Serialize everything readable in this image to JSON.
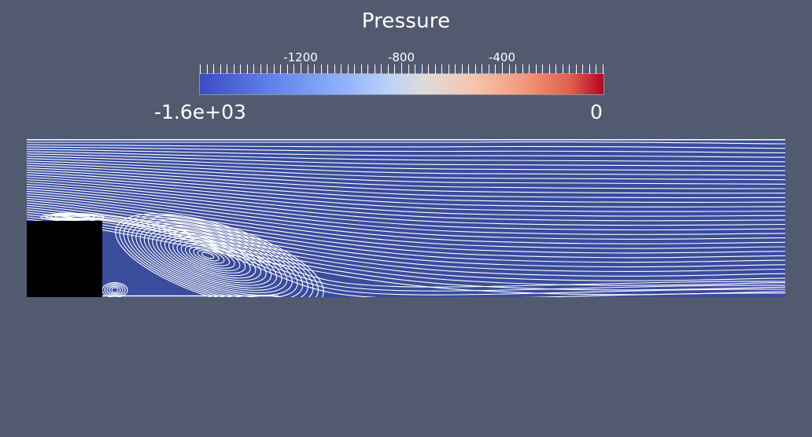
{
  "legend": {
    "title": "Pressure",
    "range_min_label": "-1.6e+03",
    "range_max_label": "0",
    "tick_labels": [
      {
        "text": "-1200",
        "value": -1200
      },
      {
        "text": "-800",
        "value": -800
      },
      {
        "text": "-400",
        "value": -400
      }
    ],
    "range": [
      -1600,
      0
    ],
    "colors": {
      "low": "#3b4cc0",
      "mid": "#dddcdc",
      "high": "#b40426"
    }
  },
  "viewport": {
    "field_color": "#3a4c9c",
    "streamline_color": "#ffffff",
    "obstacle_color": "#000000",
    "background_color": "#525a70"
  }
}
